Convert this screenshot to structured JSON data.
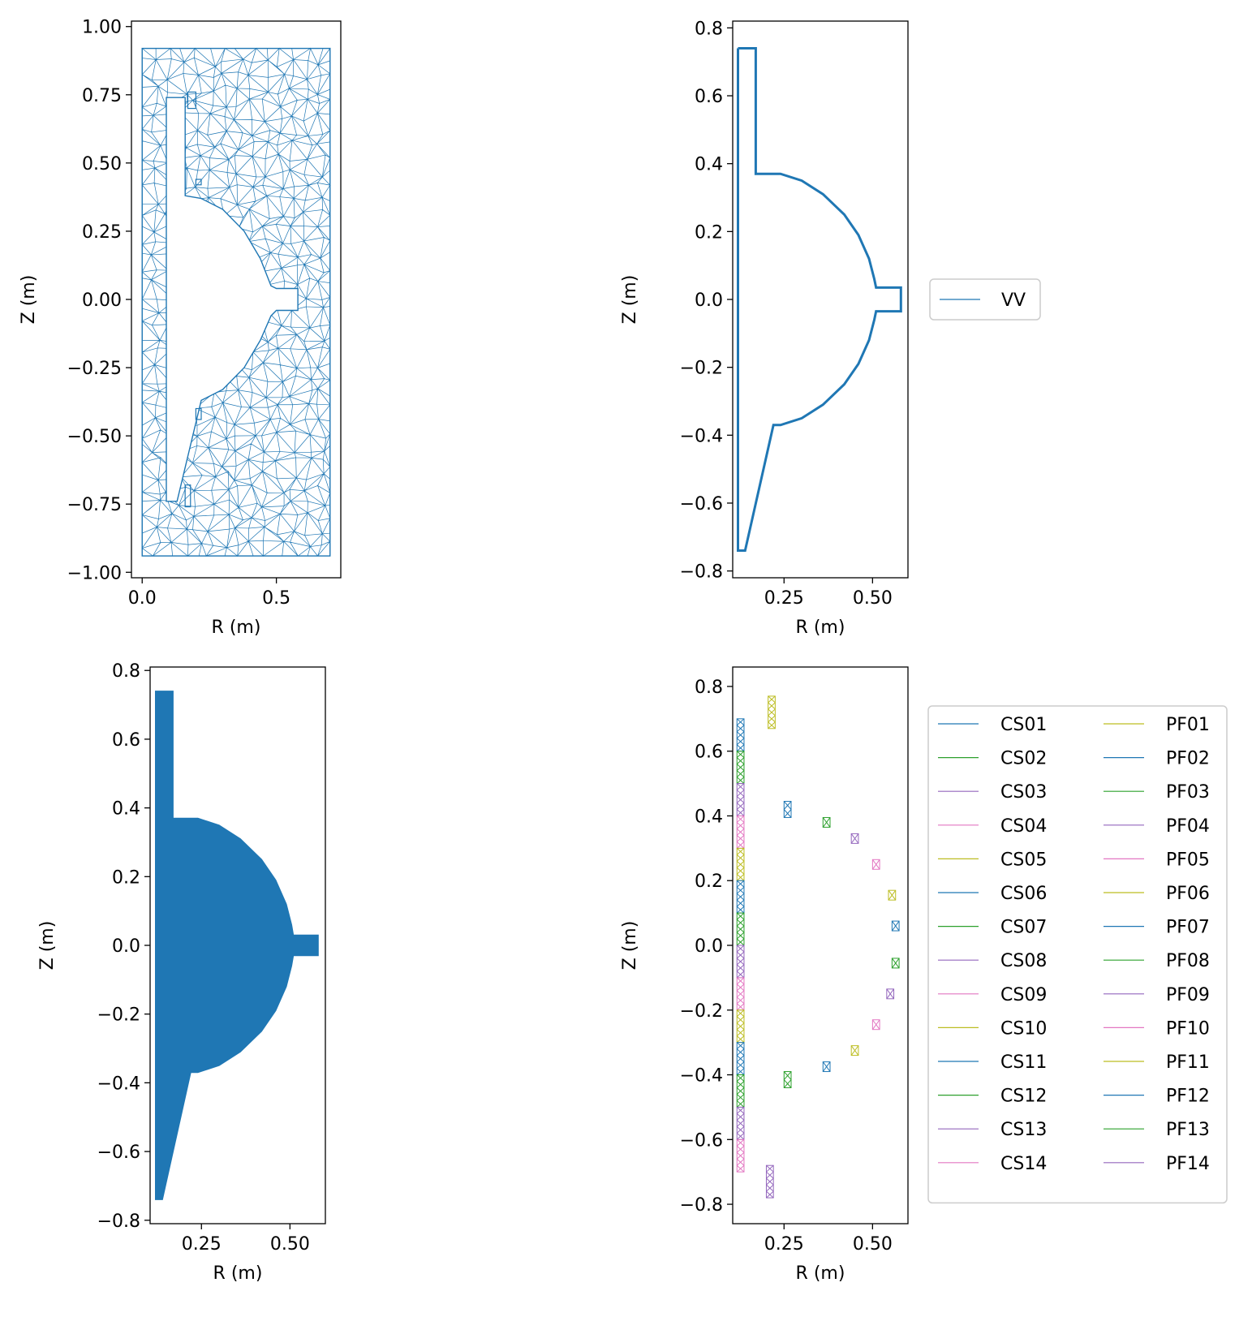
{
  "figure": {
    "layout": "2x2 grid of subplots"
  },
  "chart_data": [
    {
      "id": "mesh",
      "type": "mesh",
      "xlabel": "R (m)",
      "ylabel": "Z (m)",
      "xlim": [
        -0.04,
        0.74
      ],
      "ylim": [
        -1.02,
        1.02
      ],
      "xticks": [
        0.0,
        0.5
      ],
      "xtick_labels": [
        "0.0",
        "0.5"
      ],
      "yticks": [
        1.0,
        0.75,
        0.5,
        0.25,
        0.0,
        -0.25,
        -0.5,
        -0.75,
        -1.0
      ],
      "ytick_labels": [
        "1.00",
        "0.75",
        "0.50",
        "0.25",
        "0.00",
        "−0.25",
        "−0.50",
        "−0.75",
        "−1.00"
      ],
      "mesh_color": "#1f77b4",
      "domain_box": {
        "r": [
          0.0,
          0.7
        ],
        "z": [
          -0.94,
          0.92
        ]
      },
      "hole_outline": [
        [
          0.09,
          0.74
        ],
        [
          0.16,
          0.74
        ],
        [
          0.16,
          0.38
        ],
        [
          0.22,
          0.37
        ],
        [
          0.3,
          0.33
        ],
        [
          0.38,
          0.25
        ],
        [
          0.44,
          0.15
        ],
        [
          0.48,
          0.05
        ],
        [
          0.5,
          0.04
        ],
        [
          0.58,
          0.04
        ],
        [
          0.58,
          -0.04
        ],
        [
          0.5,
          -0.04
        ],
        [
          0.48,
          -0.06
        ],
        [
          0.44,
          -0.15
        ],
        [
          0.38,
          -0.25
        ],
        [
          0.3,
          -0.33
        ],
        [
          0.22,
          -0.37
        ],
        [
          0.13,
          -0.74
        ],
        [
          0.09,
          -0.74
        ]
      ],
      "coil_rectangles": [
        [
          0.17,
          0.7,
          0.2,
          0.76
        ],
        [
          0.2,
          0.42,
          0.22,
          0.44
        ],
        [
          0.2,
          -0.44,
          0.22,
          -0.4
        ],
        [
          0.16,
          -0.76,
          0.18,
          -0.68
        ]
      ]
    },
    {
      "id": "vacuum-vessel",
      "type": "line",
      "xlabel": "R (m)",
      "ylabel": "Z (m)",
      "xlim": [
        0.105,
        0.6
      ],
      "ylim": [
        -0.82,
        0.82
      ],
      "xticks": [
        0.25,
        0.5
      ],
      "xtick_labels": [
        "0.25",
        "0.50"
      ],
      "yticks": [
        0.8,
        0.6,
        0.4,
        0.2,
        0.0,
        -0.2,
        -0.4,
        -0.6,
        -0.8
      ],
      "ytick_labels": [
        "0.8",
        "0.6",
        "0.4",
        "0.2",
        "0.0",
        "−0.2",
        "−0.4",
        "−0.6",
        "−0.8"
      ],
      "legend": {
        "entries": [
          "VV"
        ],
        "placement": "right"
      },
      "series": [
        {
          "name": "VV",
          "color": "#1f77b4",
          "points": [
            [
              0.12,
              0.74
            ],
            [
              0.17,
              0.74
            ],
            [
              0.17,
              0.37
            ],
            [
              0.24,
              0.37
            ],
            [
              0.3,
              0.35
            ],
            [
              0.36,
              0.31
            ],
            [
              0.42,
              0.25
            ],
            [
              0.46,
              0.19
            ],
            [
              0.49,
              0.12
            ],
            [
              0.505,
              0.06
            ],
            [
              0.51,
              0.035
            ],
            [
              0.58,
              0.035
            ],
            [
              0.58,
              -0.035
            ],
            [
              0.51,
              -0.035
            ],
            [
              0.505,
              -0.06
            ],
            [
              0.49,
              -0.12
            ],
            [
              0.46,
              -0.19
            ],
            [
              0.42,
              -0.25
            ],
            [
              0.36,
              -0.31
            ],
            [
              0.3,
              -0.35
            ],
            [
              0.24,
              -0.37
            ],
            [
              0.22,
              -0.37
            ],
            [
              0.14,
              -0.74
            ],
            [
              0.12,
              -0.74
            ],
            [
              0.12,
              0.74
            ]
          ]
        }
      ]
    },
    {
      "id": "vessel-mesh-filled",
      "type": "area",
      "xlabel": "R (m)",
      "ylabel": "Z (m)",
      "xlim": [
        0.105,
        0.6
      ],
      "ylim": [
        -0.81,
        0.81
      ],
      "xticks": [
        0.25,
        0.5
      ],
      "xtick_labels": [
        "0.25",
        "0.50"
      ],
      "yticks": [
        0.8,
        0.6,
        0.4,
        0.2,
        0.0,
        -0.2,
        -0.4,
        -0.6,
        -0.8
      ],
      "ytick_labels": [
        "0.8",
        "0.6",
        "0.4",
        "0.2",
        "0.0",
        "−0.2",
        "−0.4",
        "−0.6",
        "−0.8"
      ],
      "fill_color": "#1f77b4",
      "region": [
        [
          0.12,
          0.74
        ],
        [
          0.17,
          0.74
        ],
        [
          0.17,
          0.37
        ],
        [
          0.24,
          0.37
        ],
        [
          0.3,
          0.35
        ],
        [
          0.36,
          0.31
        ],
        [
          0.42,
          0.25
        ],
        [
          0.46,
          0.19
        ],
        [
          0.49,
          0.12
        ],
        [
          0.505,
          0.06
        ],
        [
          0.51,
          0.03
        ],
        [
          0.58,
          0.03
        ],
        [
          0.58,
          -0.03
        ],
        [
          0.51,
          -0.03
        ],
        [
          0.505,
          -0.06
        ],
        [
          0.49,
          -0.12
        ],
        [
          0.46,
          -0.19
        ],
        [
          0.42,
          -0.25
        ],
        [
          0.36,
          -0.31
        ],
        [
          0.3,
          -0.35
        ],
        [
          0.24,
          -0.37
        ],
        [
          0.22,
          -0.37
        ],
        [
          0.14,
          -0.74
        ],
        [
          0.12,
          -0.74
        ]
      ]
    },
    {
      "id": "coils",
      "type": "scatter",
      "xlabel": "R (m)",
      "ylabel": "Z (m)",
      "xlim": [
        0.105,
        0.6
      ],
      "ylim": [
        -0.86,
        0.86
      ],
      "xticks": [
        0.25,
        0.5
      ],
      "xtick_labels": [
        "0.25",
        "0.50"
      ],
      "yticks": [
        0.8,
        0.6,
        0.4,
        0.2,
        0.0,
        -0.2,
        -0.4,
        -0.6,
        -0.8
      ],
      "ytick_labels": [
        "0.8",
        "0.6",
        "0.4",
        "0.2",
        "0.0",
        "−0.2",
        "−0.4",
        "−0.6",
        "−0.8"
      ],
      "legend": {
        "placement": "right",
        "columns": 2
      },
      "coil_width": 0.02,
      "series": [
        {
          "name": "CS01",
          "color": "#1f77b4",
          "r": 0.127,
          "z": 0.65,
          "h": 0.1
        },
        {
          "name": "CS02",
          "color": "#2ca02c",
          "r": 0.127,
          "z": 0.55,
          "h": 0.1
        },
        {
          "name": "CS03",
          "color": "#9467bd",
          "r": 0.127,
          "z": 0.45,
          "h": 0.1
        },
        {
          "name": "CS04",
          "color": "#e377c2",
          "r": 0.127,
          "z": 0.35,
          "h": 0.1
        },
        {
          "name": "CS05",
          "color": "#bcbd22",
          "r": 0.127,
          "z": 0.25,
          "h": 0.1
        },
        {
          "name": "CS06",
          "color": "#1f77b4",
          "r": 0.127,
          "z": 0.15,
          "h": 0.1
        },
        {
          "name": "CS07",
          "color": "#2ca02c",
          "r": 0.127,
          "z": 0.05,
          "h": 0.1
        },
        {
          "name": "CS08",
          "color": "#9467bd",
          "r": 0.127,
          "z": -0.05,
          "h": 0.1
        },
        {
          "name": "CS09",
          "color": "#e377c2",
          "r": 0.127,
          "z": -0.15,
          "h": 0.1
        },
        {
          "name": "CS10",
          "color": "#bcbd22",
          "r": 0.127,
          "z": -0.25,
          "h": 0.1
        },
        {
          "name": "CS11",
          "color": "#1f77b4",
          "r": 0.127,
          "z": -0.35,
          "h": 0.1
        },
        {
          "name": "CS12",
          "color": "#2ca02c",
          "r": 0.127,
          "z": -0.45,
          "h": 0.1
        },
        {
          "name": "CS13",
          "color": "#9467bd",
          "r": 0.127,
          "z": -0.55,
          "h": 0.1
        },
        {
          "name": "CS14",
          "color": "#e377c2",
          "r": 0.127,
          "z": -0.65,
          "h": 0.1
        },
        {
          "name": "PF01",
          "color": "#bcbd22",
          "r": 0.215,
          "z": 0.72,
          "h": 0.1
        },
        {
          "name": "PF02",
          "color": "#1f77b4",
          "r": 0.26,
          "z": 0.42,
          "h": 0.05
        },
        {
          "name": "PF03",
          "color": "#2ca02c",
          "r": 0.37,
          "z": 0.38,
          "h": 0.03
        },
        {
          "name": "PF04",
          "color": "#9467bd",
          "r": 0.45,
          "z": 0.33,
          "h": 0.03
        },
        {
          "name": "PF05",
          "color": "#e377c2",
          "r": 0.51,
          "z": 0.25,
          "h": 0.03
        },
        {
          "name": "PF06",
          "color": "#bcbd22",
          "r": 0.555,
          "z": 0.155,
          "h": 0.03
        },
        {
          "name": "PF07",
          "color": "#1f77b4",
          "r": 0.565,
          "z": 0.06,
          "h": 0.03
        },
        {
          "name": "PF08",
          "color": "#2ca02c",
          "r": 0.565,
          "z": -0.055,
          "h": 0.03
        },
        {
          "name": "PF09",
          "color": "#9467bd",
          "r": 0.55,
          "z": -0.15,
          "h": 0.03
        },
        {
          "name": "PF10",
          "color": "#e377c2",
          "r": 0.51,
          "z": -0.245,
          "h": 0.03
        },
        {
          "name": "PF11",
          "color": "#bcbd22",
          "r": 0.45,
          "z": -0.325,
          "h": 0.03
        },
        {
          "name": "PF12",
          "color": "#1f77b4",
          "r": 0.37,
          "z": -0.375,
          "h": 0.03
        },
        {
          "name": "PF13",
          "color": "#2ca02c",
          "r": 0.26,
          "z": -0.415,
          "h": 0.05
        },
        {
          "name": "PF14",
          "color": "#9467bd",
          "r": 0.21,
          "z": -0.73,
          "h": 0.1
        }
      ]
    }
  ]
}
